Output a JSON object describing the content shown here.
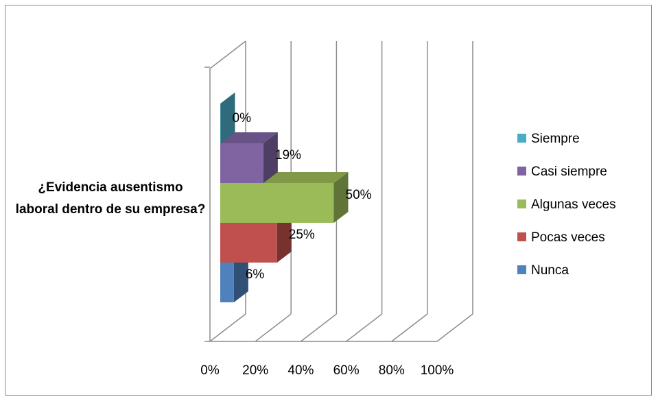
{
  "chart_data": {
    "type": "bar",
    "orientation": "horizontal",
    "three_d": true,
    "categories": [
      "¿Evidencia ausentismo laboral dentro de su empresa?"
    ],
    "series": [
      {
        "name": "Nunca",
        "values": [
          6
        ],
        "label": "6%",
        "color": "#4f81bd"
      },
      {
        "name": "Pocas veces",
        "values": [
          25
        ],
        "label": "25%",
        "color": "#c0504d"
      },
      {
        "name": "Algunas veces",
        "values": [
          50
        ],
        "label": "50%",
        "color": "#9bbb59"
      },
      {
        "name": "Casi siempre",
        "values": [
          19
        ],
        "label": "19%",
        "color": "#8064a2"
      },
      {
        "name": "Siempre",
        "values": [
          0
        ],
        "label": "0%",
        "color": "#4bacc6"
      }
    ],
    "legend_order": [
      "Siempre",
      "Casi siempre",
      "Algunas veces",
      "Pocas veces",
      "Nunca"
    ],
    "xlim": [
      0,
      100
    ],
    "x_ticks": [
      "0%",
      "20%",
      "40%",
      "60%",
      "80%",
      "100%"
    ],
    "grid": true,
    "legend_position": "right"
  }
}
